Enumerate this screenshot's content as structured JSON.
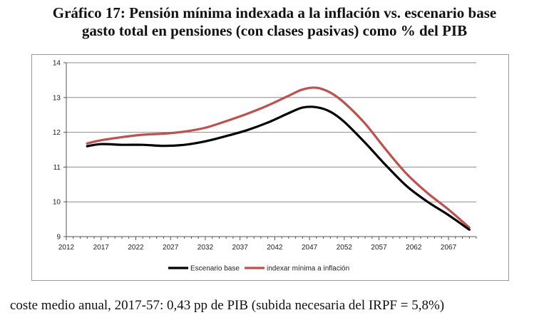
{
  "title_line1": "Gráfico 17: Pensión mínima indexada a la inflación vs. escenario base",
  "title_line2": "gasto total en pensiones (con clases pasivas) como % del PIB",
  "footnote": "coste medio anual, 2017-57: 0,43 pp de PIB  (subida necesaria del IRPF = 5,8%)",
  "chart_data": {
    "type": "line",
    "title": "",
    "xlabel": "",
    "ylabel": "",
    "xlim": [
      2012,
      2071
    ],
    "ylim": [
      9,
      14
    ],
    "x_ticks": [
      2012,
      2017,
      2022,
      2027,
      2032,
      2037,
      2042,
      2047,
      2052,
      2057,
      2062,
      2067
    ],
    "y_ticks": [
      9,
      10,
      11,
      12,
      13,
      14
    ],
    "grid": "horizontal",
    "legend_position": "bottom",
    "series": [
      {
        "name": "Escenario base",
        "color": "#000000",
        "x": [
          2015,
          2017,
          2020,
          2023,
          2026,
          2029,
          2032,
          2035,
          2038,
          2041,
          2044,
          2046,
          2048,
          2050,
          2052,
          2055,
          2058,
          2061,
          2064,
          2067,
          2070
        ],
        "values": [
          11.6,
          11.66,
          11.64,
          11.64,
          11.61,
          11.64,
          11.74,
          11.89,
          12.06,
          12.28,
          12.55,
          12.71,
          12.72,
          12.59,
          12.3,
          11.7,
          11.05,
          10.45,
          10.0,
          9.62,
          9.2
        ]
      },
      {
        "name": "indexar mínima a inflación",
        "color": "#c0504d",
        "x": [
          2015,
          2017,
          2020,
          2023,
          2026,
          2029,
          2032,
          2035,
          2038,
          2041,
          2044,
          2046,
          2048,
          2050,
          2052,
          2055,
          2058,
          2061,
          2064,
          2067,
          2070
        ],
        "values": [
          11.68,
          11.77,
          11.86,
          11.93,
          11.96,
          12.02,
          12.13,
          12.32,
          12.53,
          12.77,
          13.05,
          13.23,
          13.28,
          13.14,
          12.85,
          12.25,
          11.5,
          10.8,
          10.25,
          9.78,
          9.26
        ]
      }
    ]
  }
}
